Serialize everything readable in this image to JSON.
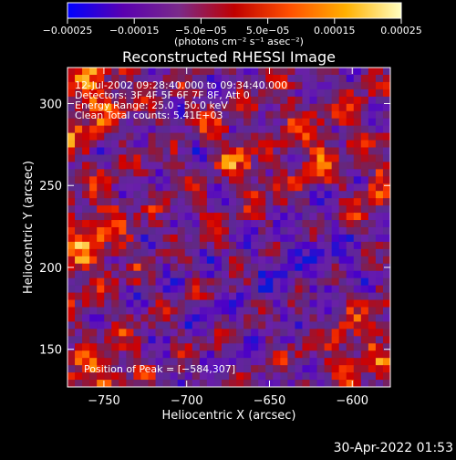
{
  "chart_data": {
    "type": "heatmap",
    "title": "Reconstructed RHESSI Image",
    "xlabel": "Heliocentric X (arcsec)",
    "ylabel": "Heliocentric Y (arcsec)",
    "xlim": [
      -772,
      -577
    ],
    "ylim": [
      127,
      322
    ],
    "xticks": [
      {
        "value": -750,
        "label": "−750"
      },
      {
        "value": -700,
        "label": "−700"
      },
      {
        "value": -650,
        "label": "−650"
      },
      {
        "value": -600,
        "label": "−600"
      }
    ],
    "yticks": [
      {
        "value": 150,
        "label": "150"
      },
      {
        "value": 200,
        "label": "200"
      },
      {
        "value": 250,
        "label": "250"
      },
      {
        "value": 300,
        "label": "300"
      }
    ],
    "annotations": [
      "12-Jul-2002 09:28:40.000 to 09:34:40.000",
      "Detectors: 3F 4F 5F 6F 7F 8F, Att 0",
      "Energy Range: 25.0 - 50.0 keV",
      "Clean     Total counts: 5.41E+03",
      "Position of Peak = [−584,307]"
    ],
    "colorbar": {
      "range": [
        -0.00025,
        0.00025
      ],
      "unit": "(photons cm⁻² s⁻¹ asec⁻²)",
      "ticks": [
        {
          "value": -0.00025,
          "label": "−0.00025"
        },
        {
          "value": -0.00015,
          "label": "−0.00015"
        },
        {
          "value": -5e-05,
          "label": "−5.0e−05"
        },
        {
          "value": 5e-05,
          "label": "5.0e−05"
        },
        {
          "value": 0.00015,
          "label": "0.00015"
        },
        {
          "value": 0.00025,
          "label": "0.00025"
        }
      ],
      "colors": [
        "#0000ff",
        "#5a00b0",
        "#7a2a8a",
        "#c00000",
        "#ff5000",
        "#ffb000",
        "#ffffc0"
      ]
    },
    "peak_position": [
      -584,
      307
    ]
  },
  "footer": {
    "date": "30-Apr-2022 01:53"
  }
}
